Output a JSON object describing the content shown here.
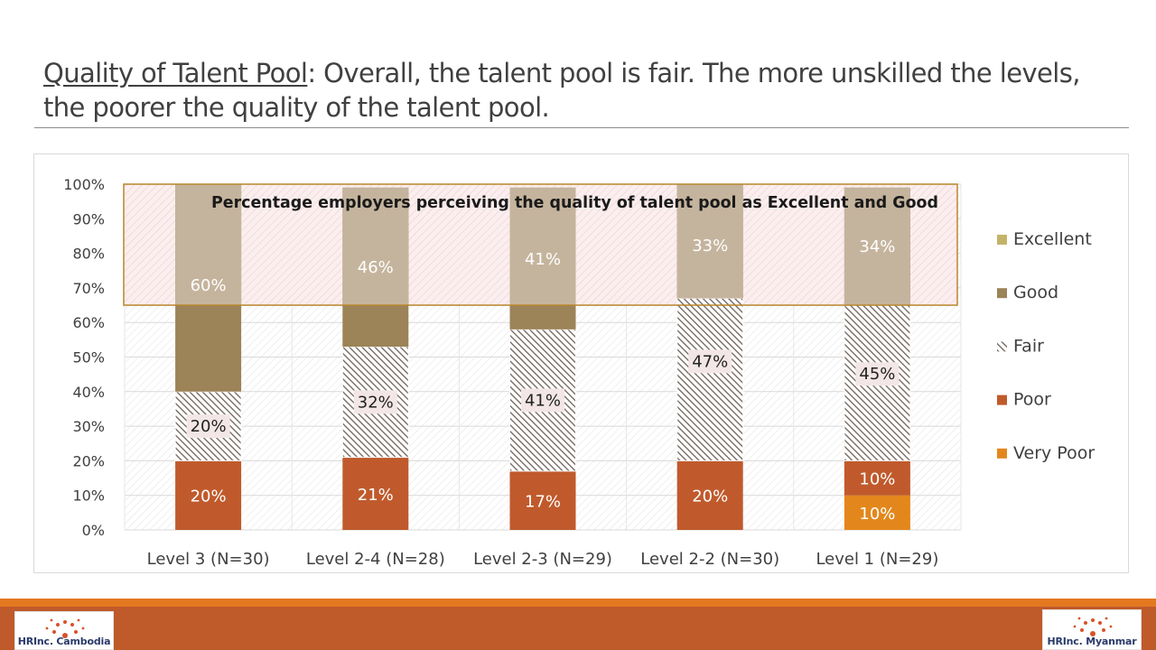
{
  "title": {
    "underlined": "Quality of Talent Pool",
    "rest": ": Overall, the talent pool is fair.  The more unskilled the levels, the poorer the quality of the talent pool."
  },
  "chart_data": {
    "type": "bar",
    "stacked": true,
    "categories": [
      "Level 3 (N=30)",
      "Level 2-4 (N=28)",
      "Level 2-3 (N=29)",
      "Level 2-2 (N=30)",
      "Level 1 (N=29)"
    ],
    "ylim": [
      0,
      100
    ],
    "yticks": [
      "0%",
      "10%",
      "20%",
      "30%",
      "40%",
      "50%",
      "60%",
      "70%",
      "80%",
      "90%",
      "100%"
    ],
    "series": [
      {
        "name": "Very Poor",
        "color": "#e3871c",
        "values": [
          0,
          0,
          0,
          0,
          10
        ],
        "labels": [
          "",
          "",
          "",
          "",
          "10%"
        ]
      },
      {
        "name": "Poor",
        "color": "#c05a2c",
        "values": [
          20,
          21,
          17,
          20,
          10
        ],
        "labels": [
          "20%",
          "21%",
          "17%",
          "20%",
          "10%"
        ]
      },
      {
        "name": "Fair",
        "color": "#6e6258",
        "pattern": "hatch",
        "values": [
          20,
          32,
          41,
          47,
          45
        ],
        "labels": [
          "20%",
          "32%",
          "41%",
          "47%",
          "45%"
        ]
      },
      {
        "name": "Good",
        "color": "#9c8358",
        "values": [
          60,
          46,
          41,
          33,
          34
        ],
        "labels": [
          "60%",
          "46%",
          "41%",
          "33%",
          "34%"
        ]
      },
      {
        "name": "Excellent",
        "color": "#c3b36a",
        "values": [
          0,
          0,
          0,
          0,
          0
        ],
        "labels": [
          "",
          "",
          "",
          "",
          ""
        ]
      }
    ],
    "legend": {
      "position": "right",
      "order": [
        "Excellent",
        "Good",
        "Fair",
        "Poor",
        "Very Poor"
      ]
    },
    "annotation": {
      "text": "Percentage employers perceiving the quality of talent pool as Excellent and Good",
      "range": [
        65,
        100
      ],
      "color": "#b8862c"
    },
    "grid": true
  },
  "logos": {
    "left": "HRInc. Cambodia",
    "right": "HRInc. Myanmar"
  },
  "colors": {
    "footer_band": "#bf5a2a",
    "footer_stripe": "#e3781f"
  }
}
